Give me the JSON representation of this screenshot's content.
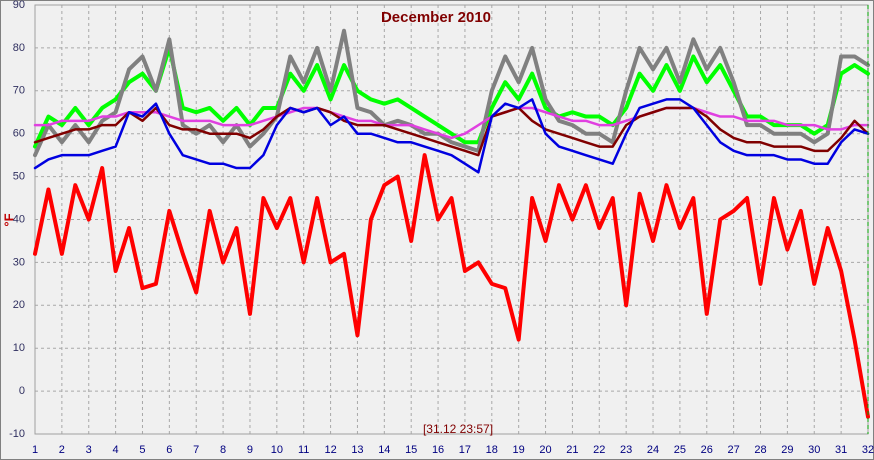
{
  "chart_data": {
    "type": "line",
    "title": "December 2010",
    "y_label": "°F",
    "annotation": "[31.12 23:57]",
    "grid": true,
    "xlim": [
      1,
      32
    ],
    "ylim": [
      -10,
      90
    ],
    "xticks": [
      1,
      2,
      3,
      4,
      5,
      6,
      7,
      8,
      9,
      10,
      11,
      12,
      13,
      14,
      15,
      16,
      17,
      18,
      19,
      20,
      21,
      22,
      23,
      24,
      25,
      26,
      27,
      28,
      29,
      30,
      31,
      32
    ],
    "yticks": [
      -10,
      0,
      10,
      20,
      30,
      40,
      50,
      60,
      70,
      80,
      90
    ],
    "x": [
      1,
      1.5,
      2,
      2.5,
      3,
      3.5,
      4,
      4.5,
      5,
      5.5,
      6,
      6.5,
      7,
      7.5,
      8,
      8.5,
      9,
      9.5,
      10,
      10.5,
      11,
      11.5,
      12,
      12.5,
      13,
      13.5,
      14,
      14.5,
      15,
      15.5,
      16,
      16.5,
      17,
      17.5,
      18,
      18.5,
      19,
      19.5,
      20,
      20.5,
      21,
      21.5,
      22,
      22.5,
      23,
      23.5,
      24,
      24.5,
      25,
      25.5,
      26,
      26.5,
      27,
      27.5,
      28,
      28.5,
      29,
      29.5,
      30,
      30.5,
      31,
      31.5,
      32
    ],
    "series": [
      {
        "color": "#00ff00",
        "width": 4,
        "values": [
          57,
          64,
          62,
          66,
          62,
          66,
          68,
          72,
          74,
          70,
          80,
          66,
          65,
          66,
          63,
          66,
          62,
          66,
          66,
          74,
          70,
          76,
          68,
          76,
          70,
          68,
          67,
          68,
          66,
          64,
          62,
          60,
          58,
          58,
          66,
          72,
          68,
          74,
          66,
          64,
          65,
          64,
          64,
          62,
          66,
          74,
          70,
          76,
          70,
          78,
          72,
          76,
          70,
          64,
          64,
          62,
          62,
          62,
          60,
          62,
          74,
          76,
          74
        ]
      },
      {
        "color": "#808080",
        "width": 4,
        "values": [
          55,
          62,
          58,
          62,
          58,
          63,
          65,
          75,
          78,
          70,
          82,
          62,
          60,
          62,
          58,
          62,
          57,
          60,
          64,
          78,
          72,
          80,
          70,
          84,
          66,
          65,
          62,
          63,
          62,
          60,
          60,
          58,
          57,
          56,
          70,
          78,
          72,
          80,
          68,
          63,
          62,
          60,
          60,
          58,
          70,
          80,
          75,
          80,
          72,
          82,
          75,
          80,
          72,
          62,
          62,
          60,
          60,
          60,
          58,
          60,
          78,
          78,
          76
        ]
      },
      {
        "color": "#e040e0",
        "width": 2.5,
        "values": [
          62,
          62,
          63,
          63,
          63,
          64,
          64,
          65,
          65,
          65,
          64,
          63,
          63,
          63,
          62,
          62,
          62,
          63,
          64,
          65,
          66,
          66,
          65,
          64,
          63,
          63,
          62,
          62,
          62,
          61,
          60,
          59,
          60,
          62,
          64,
          65,
          66,
          66,
          65,
          64,
          63,
          63,
          62,
          62,
          63,
          64,
          65,
          66,
          66,
          66,
          65,
          64,
          64,
          63,
          63,
          63,
          62,
          62,
          62,
          61,
          61,
          62,
          62
        ]
      },
      {
        "color": "#800000",
        "width": 2.5,
        "values": [
          58,
          59,
          60,
          61,
          61,
          62,
          62,
          65,
          63,
          66,
          62,
          61,
          61,
          60,
          60,
          60,
          59,
          61,
          64,
          66,
          65,
          66,
          65,
          63,
          62,
          62,
          62,
          61,
          60,
          59,
          58,
          57,
          56,
          55,
          64,
          65,
          66,
          63,
          61,
          60,
          59,
          58,
          57,
          57,
          62,
          64,
          65,
          66,
          66,
          66,
          64,
          61,
          59,
          58,
          58,
          57,
          57,
          57,
          56,
          56,
          59,
          63,
          60
        ]
      },
      {
        "color": "#0000e0",
        "width": 2.5,
        "values": [
          52,
          54,
          55,
          55,
          55,
          56,
          57,
          65,
          64,
          67,
          60,
          55,
          54,
          53,
          53,
          52,
          52,
          55,
          62,
          66,
          65,
          66,
          62,
          64,
          60,
          60,
          59,
          58,
          58,
          57,
          56,
          55,
          53,
          51,
          64,
          67,
          66,
          68,
          60,
          57,
          56,
          55,
          54,
          53,
          60,
          66,
          67,
          68,
          68,
          66,
          62,
          58,
          56,
          55,
          55,
          55,
          54,
          54,
          53,
          53,
          58,
          61,
          60
        ]
      },
      {
        "color": "#ff0000",
        "width": 4,
        "values": [
          32,
          47,
          32,
          48,
          40,
          52,
          28,
          38,
          24,
          25,
          42,
          32,
          23,
          42,
          30,
          38,
          18,
          45,
          38,
          45,
          30,
          45,
          30,
          32,
          13,
          40,
          48,
          50,
          35,
          55,
          40,
          45,
          28,
          30,
          25,
          24,
          12,
          45,
          35,
          48,
          40,
          48,
          38,
          45,
          20,
          46,
          35,
          48,
          38,
          45,
          18,
          40,
          42,
          45,
          25,
          45,
          33,
          42,
          25,
          38,
          28,
          12,
          -6
        ]
      }
    ]
  }
}
